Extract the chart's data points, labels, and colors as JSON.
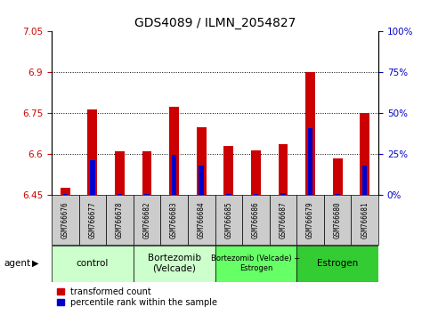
{
  "title": "GDS4089 / ILMN_2054827",
  "samples": [
    "GSM766676",
    "GSM766677",
    "GSM766678",
    "GSM766682",
    "GSM766683",
    "GSM766684",
    "GSM766685",
    "GSM766686",
    "GSM766687",
    "GSM766679",
    "GSM766680",
    "GSM766681"
  ],
  "red_values": [
    6.475,
    6.765,
    6.61,
    6.61,
    6.775,
    6.7,
    6.63,
    6.615,
    6.635,
    6.9,
    6.585,
    6.75
  ],
  "blue_values": [
    6.453,
    6.578,
    6.454,
    6.454,
    6.598,
    6.557,
    6.454,
    6.454,
    6.458,
    6.694,
    6.454,
    6.558
  ],
  "baseline": 6.45,
  "ylim_left": [
    6.45,
    7.05
  ],
  "yticks_left": [
    6.45,
    6.6,
    6.75,
    6.9,
    7.05
  ],
  "yticks_right": [
    0,
    25,
    50,
    75,
    100
  ],
  "ylabel_left_color": "#cc0000",
  "ylabel_right_color": "#0000cc",
  "red_bar_width": 0.35,
  "blue_bar_width": 0.18,
  "groups": [
    {
      "label": "control",
      "start": 0,
      "end": 2,
      "color": "#ccffcc"
    },
    {
      "label": "Bortezomib\n(Velcade)",
      "start": 3,
      "end": 5,
      "color": "#ccffcc"
    },
    {
      "label": "Bortezomib (Velcade) +\nEstrogen",
      "start": 6,
      "end": 8,
      "color": "#66ff66"
    },
    {
      "label": "Estrogen",
      "start": 9,
      "end": 11,
      "color": "#33cc33"
    }
  ],
  "red_color": "#cc0000",
  "blue_color": "#0000cc",
  "legend_red": "transformed count",
  "legend_blue": "percentile rank within the sample",
  "sample_bg": "#cccccc",
  "plot_bg": "#ffffff"
}
